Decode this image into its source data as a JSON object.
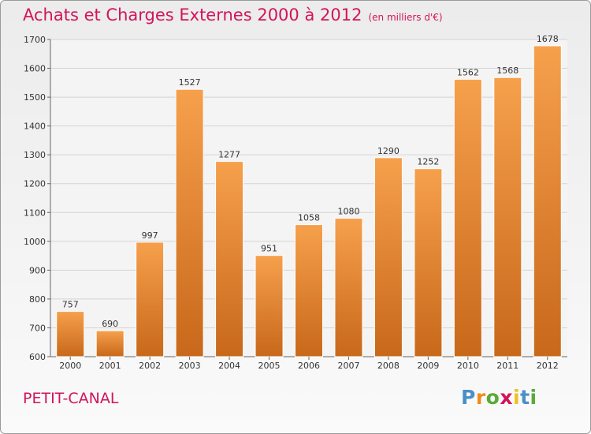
{
  "header": {
    "title": "Achats et Charges Externes 2000 à 2012",
    "subtitle": "(en milliers d'€)"
  },
  "footer": {
    "commune": "PETIT-CANAL",
    "logo": {
      "letters": [
        "P",
        "r",
        "o",
        "x",
        "i",
        "t",
        "i"
      ],
      "colors": [
        "#4a90c8",
        "#f08a1c",
        "#5aaa36",
        "#d2145a",
        "#f0c020",
        "#4a90c8",
        "#5aaa36"
      ]
    }
  },
  "colors": {
    "bar_top": "#f6a04c",
    "bar_bottom": "#c8681a",
    "title": "#d2145a"
  },
  "chart_data": {
    "type": "bar",
    "title": "Achats et Charges Externes 2000 à 2012",
    "subtitle": "(en milliers d'€)",
    "categories": [
      "2000",
      "2001",
      "2002",
      "2003",
      "2004",
      "2005",
      "2006",
      "2007",
      "2008",
      "2009",
      "2010",
      "2011",
      "2012"
    ],
    "values": [
      757,
      690,
      997,
      1527,
      1277,
      951,
      1058,
      1080,
      1290,
      1252,
      1562,
      1568,
      1678
    ],
    "data_labels": [
      "757",
      "690",
      "997",
      "1527",
      "1277",
      "951",
      "1058",
      "1080",
      "1290",
      "1252",
      "1562",
      "1568",
      "1678"
    ],
    "ylim": [
      600,
      1700
    ],
    "y_ticks": [
      600,
      700,
      800,
      900,
      1000,
      1100,
      1200,
      1300,
      1400,
      1500,
      1600,
      1700
    ],
    "grid": true,
    "xlabel": "",
    "ylabel": ""
  }
}
